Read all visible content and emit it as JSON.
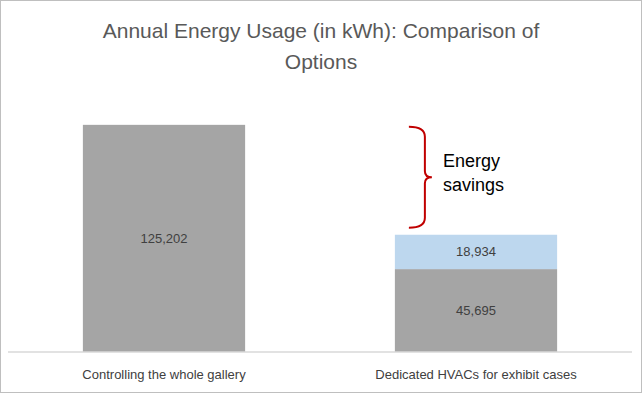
{
  "chart_data": {
    "type": "bar",
    "title": "Annual Energy Usage (in kWh): Comparison of Options",
    "categories": [
      "Controlling the whole gallery",
      "Dedicated HVACs for exhibit cases"
    ],
    "series": [
      {
        "color": "#a5a5a5",
        "values": [
          125202,
          45695
        ],
        "value_labels": [
          "125,202",
          "45,695"
        ]
      },
      {
        "color": "#bdd7ee",
        "values": [
          null,
          18934
        ],
        "value_labels": [
          null,
          "18,934"
        ]
      }
    ],
    "stacked": true,
    "data_labels": true,
    "tick_labels": "x",
    "grid": false,
    "ylim": [
      0,
      140000
    ],
    "annotations": [
      {
        "text": "Energy savings",
        "color": "#c00000"
      }
    ]
  }
}
